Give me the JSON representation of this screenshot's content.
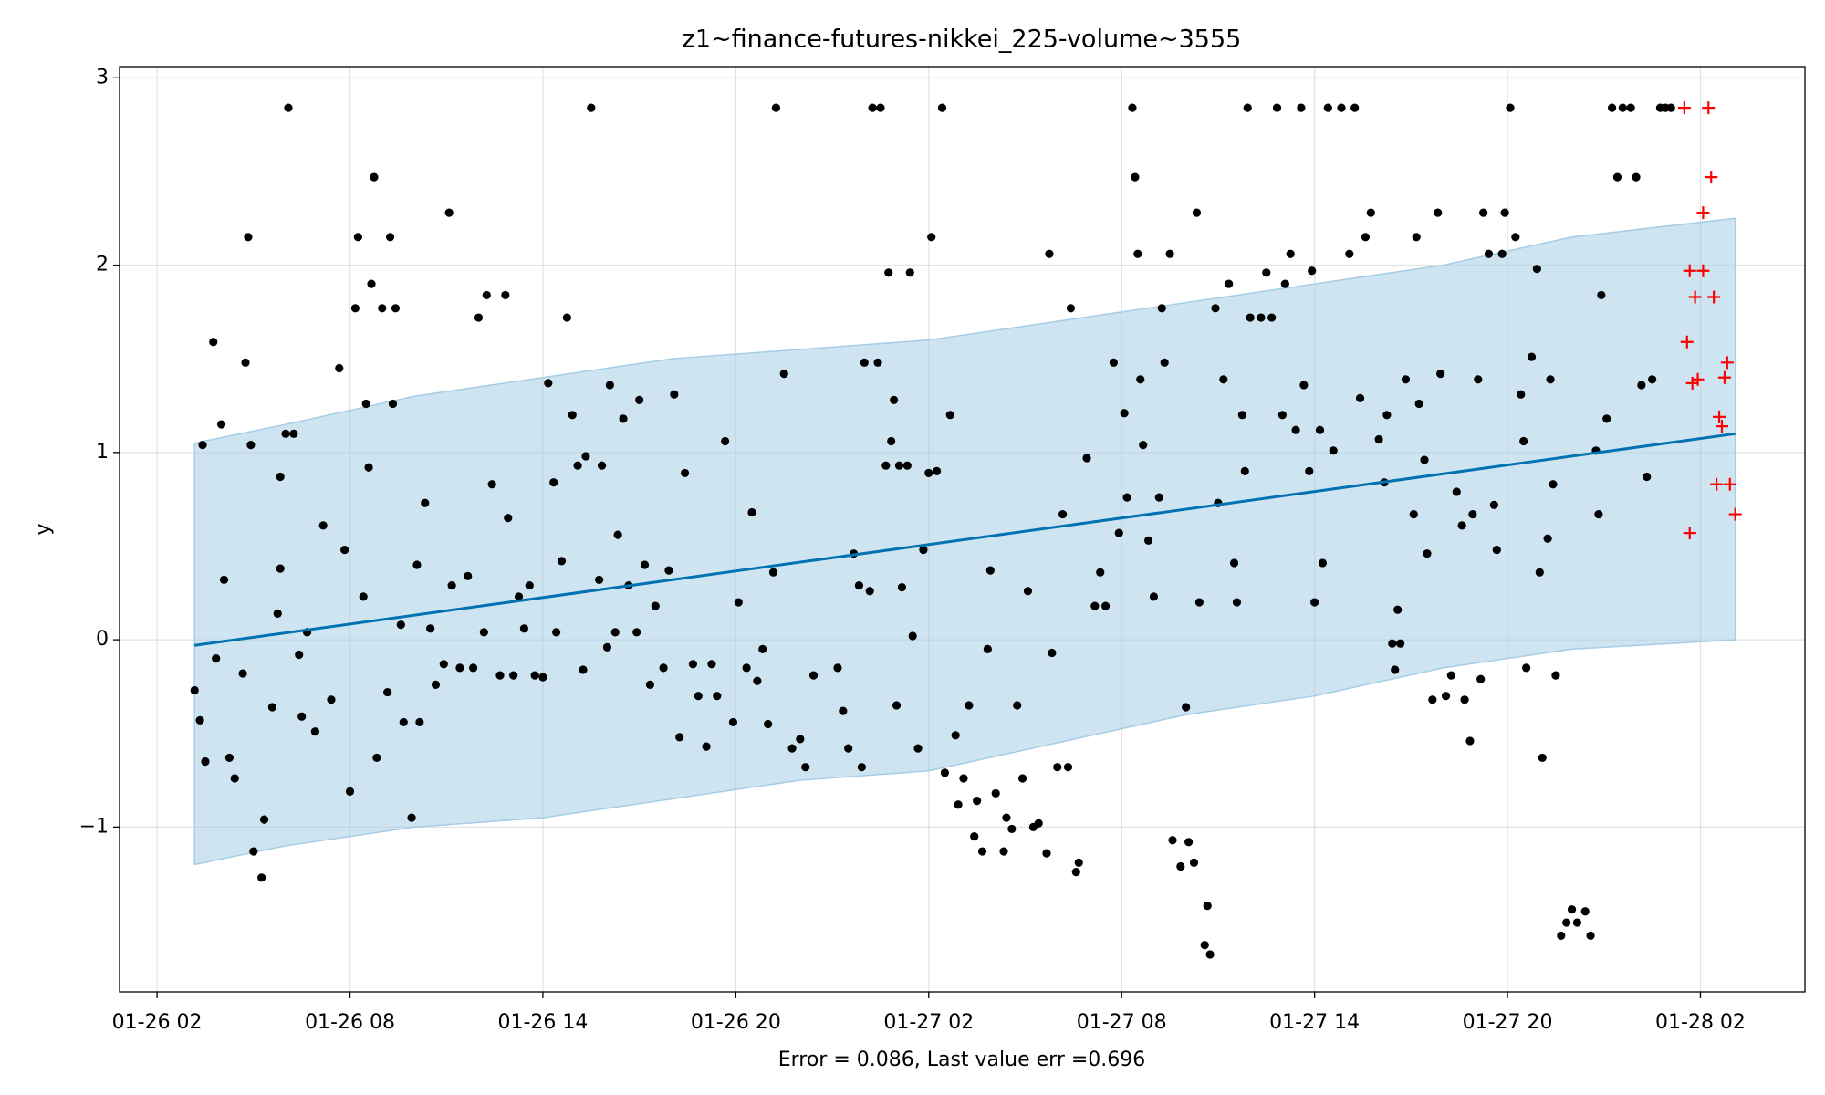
{
  "chart_data": {
    "type": "scatter",
    "title": "z1~finance-futures-nikkei_225-volume~3555",
    "xlabel": "Error = 0.086, Last value err =0.696",
    "ylabel": "y",
    "xlim": [
      "01-26 00:50",
      "01-28 05:15"
    ],
    "xticks": [
      "01-26 02",
      "01-26 08",
      "01-26 14",
      "01-26 20",
      "01-27 02",
      "01-27 08",
      "01-27 14",
      "01-27 20",
      "01-28 02"
    ],
    "ylim": [
      -1.88,
      3.06
    ],
    "yticks": [
      {
        "value": -1,
        "label": "−1"
      },
      0,
      1,
      2,
      3
    ],
    "grid": true,
    "band": {
      "color": "#a6cde6",
      "x": [
        "01-26 03:10",
        "01-26 06:00",
        "01-26 10:00",
        "01-26 14:00",
        "01-26 18:00",
        "01-26 22:00",
        "01-27 02:00",
        "01-27 06:00",
        "01-27 10:00",
        "01-27 14:00",
        "01-27 18:00",
        "01-27 22:00",
        "01-28 03:05"
      ],
      "lower": [
        -1.2,
        -1.1,
        -1.0,
        -0.95,
        -0.85,
        -0.75,
        -0.7,
        -0.55,
        -0.4,
        -0.3,
        -0.15,
        -0.05,
        0.0
      ],
      "upper": [
        1.05,
        1.15,
        1.3,
        1.4,
        1.5,
        1.55,
        1.6,
        1.7,
        1.8,
        1.9,
        2.0,
        2.15,
        2.25
      ]
    },
    "series": [
      {
        "type": "line",
        "color": "#0072b2",
        "x": [
          "01-26 03:10",
          "01-28 03:05"
        ],
        "values": [
          -0.03,
          1.1
        ]
      },
      {
        "type": "scatter",
        "marker": "dot",
        "color": "#000000",
        "x": [
          "01-26 03:10",
          "01-26 03:20",
          "01-26 03:25",
          "01-26 03:30",
          "01-26 03:45",
          "01-26 03:50",
          "01-26 04:00",
          "01-26 04:05",
          "01-26 04:15",
          "01-26 04:25",
          "01-26 04:40",
          "01-26 04:45",
          "01-26 04:50",
          "01-26 04:55",
          "01-26 05:00",
          "01-26 05:15",
          "01-26 05:20",
          "01-26 05:35",
          "01-26 05:45",
          "01-26 05:50",
          "01-26 05:50",
          "01-26 06:00",
          "01-26 06:05",
          "01-26 06:15",
          "01-26 06:25",
          "01-26 06:30",
          "01-26 06:40",
          "01-26 06:55",
          "01-26 07:10",
          "01-26 07:25",
          "01-26 07:40",
          "01-26 07:50",
          "01-26 08:00",
          "01-26 08:10",
          "01-26 08:15",
          "01-26 08:25",
          "01-26 08:30",
          "01-26 08:35",
          "01-26 08:40",
          "01-26 08:45",
          "01-26 08:50",
          "01-26 09:00",
          "01-26 09:10",
          "01-26 09:15",
          "01-26 09:20",
          "01-26 09:25",
          "01-26 09:35",
          "01-26 09:40",
          "01-26 09:55",
          "01-26 10:05",
          "01-26 10:10",
          "01-26 10:20",
          "01-26 10:30",
          "01-26 10:40",
          "01-26 10:55",
          "01-26 11:05",
          "01-26 11:10",
          "01-26 11:25",
          "01-26 11:40",
          "01-26 11:50",
          "01-26 12:00",
          "01-26 12:10",
          "01-26 12:15",
          "01-26 12:25",
          "01-26 12:40",
          "01-26 12:50",
          "01-26 12:55",
          "01-26 13:05",
          "01-26 13:15",
          "01-26 13:25",
          "01-26 13:35",
          "01-26 13:45",
          "01-26 14:00",
          "01-26 14:10",
          "01-26 14:20",
          "01-26 14:25",
          "01-26 14:35",
          "01-26 14:45",
          "01-26 14:55",
          "01-26 15:05",
          "01-26 15:15",
          "01-26 15:20",
          "01-26 15:30",
          "01-26 15:45",
          "01-26 15:50",
          "01-26 16:00",
          "01-26 16:05",
          "01-26 16:15",
          "01-26 16:20",
          "01-26 16:30",
          "01-26 16:40",
          "01-26 16:55",
          "01-26 17:00",
          "01-26 17:10",
          "01-26 17:20",
          "01-26 17:30",
          "01-26 17:45",
          "01-26 17:55",
          "01-26 18:05",
          "01-26 18:15",
          "01-26 18:25",
          "01-26 18:40",
          "01-26 18:50",
          "01-26 19:05",
          "01-26 19:15",
          "01-26 19:25",
          "01-26 19:40",
          "01-26 19:55",
          "01-26 20:05",
          "01-26 20:20",
          "01-26 20:30",
          "01-26 20:40",
          "01-26 20:50",
          "01-26 21:00",
          "01-26 21:10",
          "01-26 21:15",
          "01-26 21:30",
          "01-26 21:45",
          "01-26 22:00",
          "01-26 22:10",
          "01-26 22:25",
          "01-26 23:10",
          "01-26 23:20",
          "01-26 23:30",
          "01-26 23:40",
          "01-26 23:50",
          "01-26 23:55",
          "01-27 00:00",
          "01-27 00:10",
          "01-27 00:15",
          "01-27 00:25",
          "01-27 00:30",
          "01-27 00:40",
          "01-27 00:45",
          "01-27 00:50",
          "01-27 00:55",
          "01-27 01:00",
          "01-27 01:05",
          "01-27 01:10",
          "01-27 01:20",
          "01-27 01:25",
          "01-27 01:30",
          "01-27 01:40",
          "01-27 01:50",
          "01-27 02:00",
          "01-27 02:05",
          "01-27 02:15",
          "01-27 02:25",
          "01-27 02:30",
          "01-27 02:40",
          "01-27 02:50",
          "01-27 02:55",
          "01-27 03:05",
          "01-27 03:15",
          "01-27 03:25",
          "01-27 03:30",
          "01-27 03:40",
          "01-27 03:50",
          "01-27 03:55",
          "01-27 04:05",
          "01-27 04:20",
          "01-27 04:25",
          "01-27 04:35",
          "01-27 04:45",
          "01-27 04:55",
          "01-27 05:05",
          "01-27 05:15",
          "01-27 05:25",
          "01-27 05:40",
          "01-27 05:45",
          "01-27 05:50",
          "01-27 06:00",
          "01-27 06:10",
          "01-27 06:20",
          "01-27 06:25",
          "01-27 06:35",
          "01-27 06:40",
          "01-27 06:55",
          "01-27 07:10",
          "01-27 07:20",
          "01-27 07:30",
          "01-27 07:45",
          "01-27 07:55",
          "01-27 08:05",
          "01-27 08:10",
          "01-27 08:20",
          "01-27 08:25",
          "01-27 08:30",
          "01-27 08:35",
          "01-27 08:40",
          "01-27 08:50",
          "01-27 09:00",
          "01-27 09:10",
          "01-27 09:15",
          "01-27 09:20",
          "01-27 09:30",
          "01-27 09:35",
          "01-27 09:50",
          "01-27 10:00",
          "01-27 10:05",
          "01-27 10:15",
          "01-27 10:20",
          "01-27 10:25",
          "01-27 10:35",
          "01-27 10:40",
          "01-27 10:45",
          "01-27 10:55",
          "01-27 11:00",
          "01-27 11:10",
          "01-27 11:20",
          "01-27 11:30",
          "01-27 11:35",
          "01-27 11:45",
          "01-27 11:50",
          "01-27 11:55",
          "01-27 12:00",
          "01-27 12:20",
          "01-27 12:30",
          "01-27 12:40",
          "01-27 12:50",
          "01-27 13:00",
          "01-27 13:05",
          "01-27 13:15",
          "01-27 13:25",
          "01-27 13:35",
          "01-27 13:40",
          "01-27 13:50",
          "01-27 13:55",
          "01-27 14:00",
          "01-27 14:10",
          "01-27 14:15",
          "01-27 14:25",
          "01-27 14:35",
          "01-27 14:50",
          "01-27 15:05",
          "01-27 15:15",
          "01-27 15:25",
          "01-27 15:35",
          "01-27 15:45",
          "01-27 16:00",
          "01-27 16:10",
          "01-27 16:15",
          "01-27 16:25",
          "01-27 16:30",
          "01-27 16:35",
          "01-27 16:40",
          "01-27 16:50",
          "01-27 17:05",
          "01-27 17:10",
          "01-27 17:15",
          "01-27 17:25",
          "01-27 17:30",
          "01-27 17:40",
          "01-27 17:50",
          "01-27 17:55",
          "01-27 18:05",
          "01-27 18:15",
          "01-27 18:25",
          "01-27 18:35",
          "01-27 18:40",
          "01-27 18:50",
          "01-27 18:55",
          "01-27 19:05",
          "01-27 19:10",
          "01-27 19:15",
          "01-27 19:25",
          "01-27 19:35",
          "01-27 19:40",
          "01-27 19:50",
          "01-27 19:55",
          "01-27 20:05",
          "01-27 20:15",
          "01-27 20:25",
          "01-27 20:30",
          "01-27 20:35",
          "01-27 20:45",
          "01-27 20:55",
          "01-27 21:00",
          "01-27 21:05",
          "01-27 21:15",
          "01-27 21:20",
          "01-27 21:25",
          "01-27 21:30",
          "01-27 21:40",
          "01-27 21:50",
          "01-27 22:00",
          "01-27 22:10",
          "01-27 22:25",
          "01-27 22:35",
          "01-27 22:45",
          "01-27 22:50",
          "01-27 22:55",
          "01-27 23:05",
          "01-27 23:15",
          "01-27 23:25",
          "01-27 23:35",
          "01-27 23:50",
          "01-28 00:00",
          "01-28 00:10",
          "01-28 00:20",
          "01-28 00:30",
          "01-28 00:45",
          "01-28 00:55",
          "01-28 01:05"
        ],
        "values": [
          -0.27,
          -0.43,
          1.04,
          -0.65,
          1.59,
          -0.1,
          1.15,
          0.32,
          -0.63,
          -0.74,
          -0.18,
          1.48,
          2.15,
          1.04,
          -1.13,
          -1.27,
          -0.96,
          -0.36,
          0.14,
          0.87,
          0.38,
          1.1,
          2.84,
          1.1,
          -0.08,
          -0.41,
          0.04,
          -0.49,
          0.61,
          -0.32,
          1.45,
          0.48,
          -0.81,
          1.77,
          2.15,
          0.23,
          1.26,
          0.92,
          1.9,
          2.47,
          -0.63,
          1.77,
          -0.28,
          2.15,
          1.26,
          1.77,
          0.08,
          -0.44,
          -0.95,
          0.4,
          -0.44,
          0.73,
          0.06,
          -0.24,
          -0.13,
          2.28,
          0.29,
          -0.15,
          0.34,
          -0.15,
          1.72,
          0.04,
          1.84,
          0.83,
          -0.19,
          1.84,
          0.65,
          -0.19,
          0.23,
          0.06,
          0.29,
          -0.19,
          -0.2,
          1.37,
          0.84,
          0.04,
          0.42,
          1.72,
          1.2,
          0.93,
          -0.16,
          0.98,
          2.84,
          0.32,
          0.93,
          -0.04,
          1.36,
          0.04,
          0.56,
          1.18,
          0.29,
          0.04,
          1.28,
          0.4,
          -0.24,
          0.18,
          -0.15,
          0.37,
          1.31,
          -0.52,
          0.89,
          -0.13,
          -0.3,
          -0.57,
          -0.13,
          -0.3,
          1.06,
          -0.44,
          0.2,
          -0.15,
          0.68,
          -0.22,
          -0.05,
          -0.45,
          0.36,
          2.84,
          1.42,
          -0.58,
          -0.53,
          -0.68,
          -0.19,
          -0.15,
          -0.38,
          -0.58,
          0.46,
          0.29,
          -0.68,
          1.48,
          0.26,
          2.84,
          1.48,
          2.84,
          0.93,
          1.96,
          1.06,
          1.28,
          -0.35,
          0.93,
          0.28,
          0.93,
          1.96,
          0.02,
          -0.58,
          0.48,
          0.89,
          2.15,
          0.9,
          2.84,
          -0.71,
          1.2,
          -0.51,
          -0.88,
          -0.74,
          -0.35,
          -1.05,
          -0.86,
          -1.13,
          -0.05,
          0.37,
          -0.82,
          -1.13,
          -0.95,
          -1.01,
          -0.35,
          -0.74,
          0.26,
          -1.0,
          -0.98,
          -1.14,
          2.06,
          -0.07,
          -0.68,
          0.67,
          -0.68,
          1.77,
          -1.24,
          -1.19,
          0.97,
          0.18,
          0.36,
          0.18,
          1.48,
          0.57,
          1.21,
          0.76,
          2.84,
          2.47,
          2.06,
          1.39,
          1.04,
          0.53,
          0.23,
          0.76,
          1.77,
          1.48,
          2.06,
          -1.07,
          -1.21,
          -0.36,
          -1.08,
          -1.19,
          2.28,
          0.2,
          -1.63,
          -1.42,
          -1.68,
          1.77,
          0.73,
          1.39,
          1.9,
          0.41,
          0.2,
          1.2,
          0.9,
          2.84,
          1.72,
          1.72,
          1.96,
          1.72,
          2.84,
          1.2,
          1.9,
          2.06,
          1.12,
          2.84,
          1.36,
          0.9,
          1.97,
          0.2,
          1.12,
          0.41,
          2.84,
          1.01,
          2.84,
          2.06,
          2.84,
          1.29,
          2.15,
          2.28,
          1.07,
          0.84,
          1.2,
          -0.02,
          -0.16,
          0.16,
          -0.02,
          1.39,
          0.67,
          2.15,
          1.26,
          0.96,
          0.46,
          -0.32,
          2.28,
          1.42,
          -0.3,
          -0.19,
          0.79,
          0.61,
          -0.32,
          -0.54,
          0.67,
          1.39,
          -0.21,
          2.28,
          2.06,
          0.72,
          0.48,
          2.06,
          2.28,
          2.84,
          2.15,
          1.31,
          1.06,
          -0.15,
          1.51,
          1.98,
          0.36,
          -0.63,
          0.54,
          1.39,
          0.83,
          -0.19,
          -1.58,
          -1.51,
          -1.44,
          -1.51,
          -1.45,
          -1.58,
          1.01,
          0.67,
          1.84,
          1.18,
          2.84,
          2.47,
          2.84,
          2.84,
          2.47,
          1.36,
          0.87,
          1.39,
          2.84,
          2.84,
          2.84
        ]
      },
      {
        "type": "scatter",
        "marker": "plus",
        "color": "#ff0000",
        "x": [
          "01-28 01:30",
          "01-28 02:15",
          "01-28 02:20",
          "01-28 02:05",
          "01-28 01:40",
          "01-28 02:05",
          "01-28 01:50",
          "01-28 02:25",
          "01-28 01:35",
          "01-28 01:45",
          "01-28 01:55",
          "01-28 02:50",
          "01-28 02:45",
          "01-28 02:35",
          "01-28 02:40",
          "01-28 02:30",
          "01-28 02:55",
          "01-28 01:40",
          "01-28 03:05"
        ],
        "values": [
          2.84,
          2.84,
          2.47,
          2.28,
          1.97,
          1.97,
          1.83,
          1.83,
          1.59,
          1.37,
          1.39,
          1.48,
          1.4,
          1.19,
          1.14,
          0.83,
          0.83,
          0.57,
          0.67
        ]
      }
    ]
  }
}
